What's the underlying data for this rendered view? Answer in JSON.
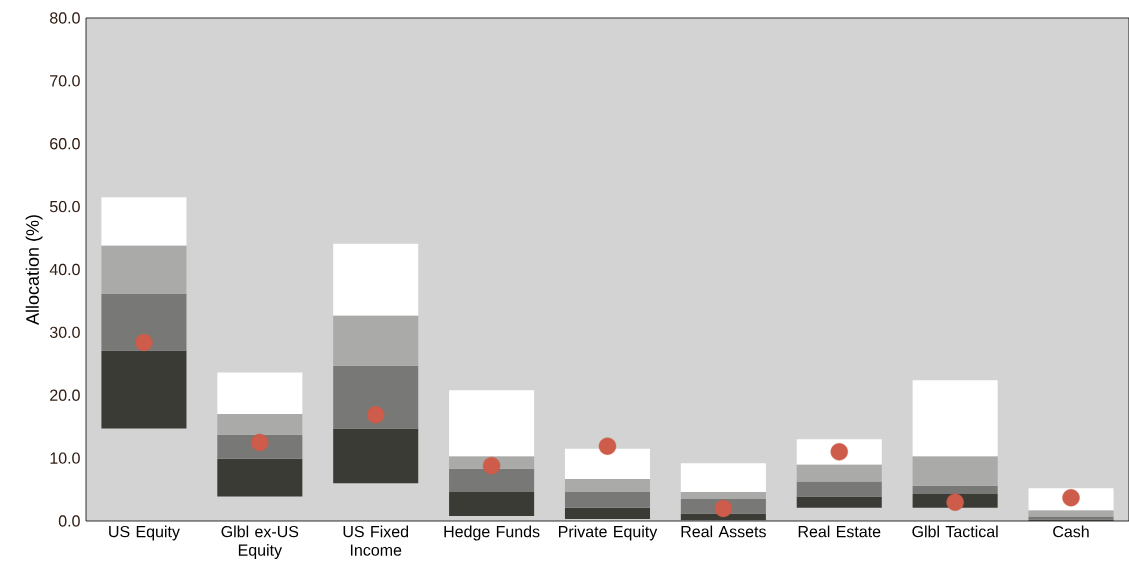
{
  "chart_data": {
    "type": "bar",
    "stacked": true,
    "ylabel": "Allocation (%)",
    "categories": [
      "US Equity",
      "Glbl ex-US Equity",
      "US Fixed Income",
      "Hedge Funds",
      "Private Equity",
      "Real Assets",
      "Real Estate",
      "Glbl Tactical",
      "Cash"
    ],
    "series": [
      {
        "color": "#3b3b36",
        "base": [
          14.7,
          3.9,
          6.0,
          0.8,
          0.3,
          0.1,
          2.1,
          2.1,
          0.0
        ],
        "values": [
          12.4,
          6.0,
          8.7,
          3.8,
          1.8,
          1.1,
          1.8,
          2.2,
          0.2
        ]
      },
      {
        "color": "#787876",
        "values": [
          9.0,
          3.8,
          10.0,
          3.7,
          2.5,
          2.3,
          2.4,
          1.3,
          0.5
        ]
      },
      {
        "color": "#aaaaa8",
        "values": [
          7.7,
          3.3,
          8.0,
          2.0,
          2.1,
          1.1,
          2.7,
          4.7,
          1.0
        ]
      },
      {
        "color": "#ffffff",
        "values": [
          7.7,
          6.6,
          11.4,
          10.5,
          4.8,
          4.6,
          4.0,
          12.1,
          3.5
        ]
      },
      {
        "type": "scatter",
        "color": "#cd5c4a",
        "x": [
          "US Equity",
          "Glbl ex-US Equity",
          "US Fixed Income",
          "Hedge Funds",
          "Private Equity",
          "Real Assets",
          "Real Estate",
          "Glbl Tactical",
          "Cash"
        ],
        "values": [
          28.4,
          12.5,
          16.9,
          8.8,
          11.9,
          2.0,
          11.0,
          3.0,
          3.7
        ]
      }
    ],
    "ylim": [
      0,
      80
    ],
    "yticks": [
      {
        "value": 0,
        "label": "0.0"
      },
      {
        "value": 10,
        "label": "10.0"
      },
      {
        "value": 20,
        "label": "20.0"
      },
      {
        "value": 30,
        "label": "30.0"
      },
      {
        "value": 40,
        "label": "40.0"
      },
      {
        "value": 50,
        "label": "50.0"
      },
      {
        "value": 60,
        "label": "60.0"
      },
      {
        "value": 70,
        "label": "70.0"
      },
      {
        "value": 80,
        "label": "80.0"
      }
    ],
    "grid": false
  }
}
